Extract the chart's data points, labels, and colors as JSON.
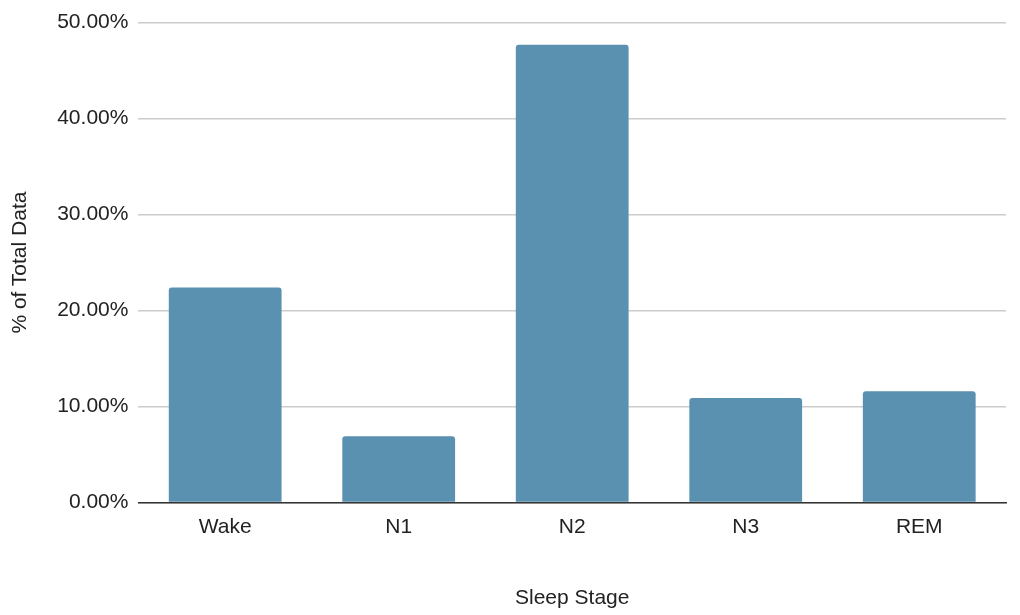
{
  "chart_data": {
    "type": "bar",
    "xlabel": "Sleep Stage",
    "ylabel": "% of Total Data",
    "categories": [
      "Wake",
      "N1",
      "N2",
      "N3",
      "REM"
    ],
    "values": [
      22.4,
      6.9,
      47.7,
      10.9,
      11.6
    ],
    "color": "#5a90b0",
    "ylim": [
      0,
      50
    ],
    "yticks": [
      {
        "value": 0,
        "label": "0.00%"
      },
      {
        "value": 10,
        "label": "10.00%"
      },
      {
        "value": 20,
        "label": "20.00%"
      },
      {
        "value": 30,
        "label": "30.00%"
      },
      {
        "value": 40,
        "label": "40.00%"
      },
      {
        "value": 50,
        "label": "50.00%"
      }
    ],
    "grid": "y",
    "legend": false
  }
}
